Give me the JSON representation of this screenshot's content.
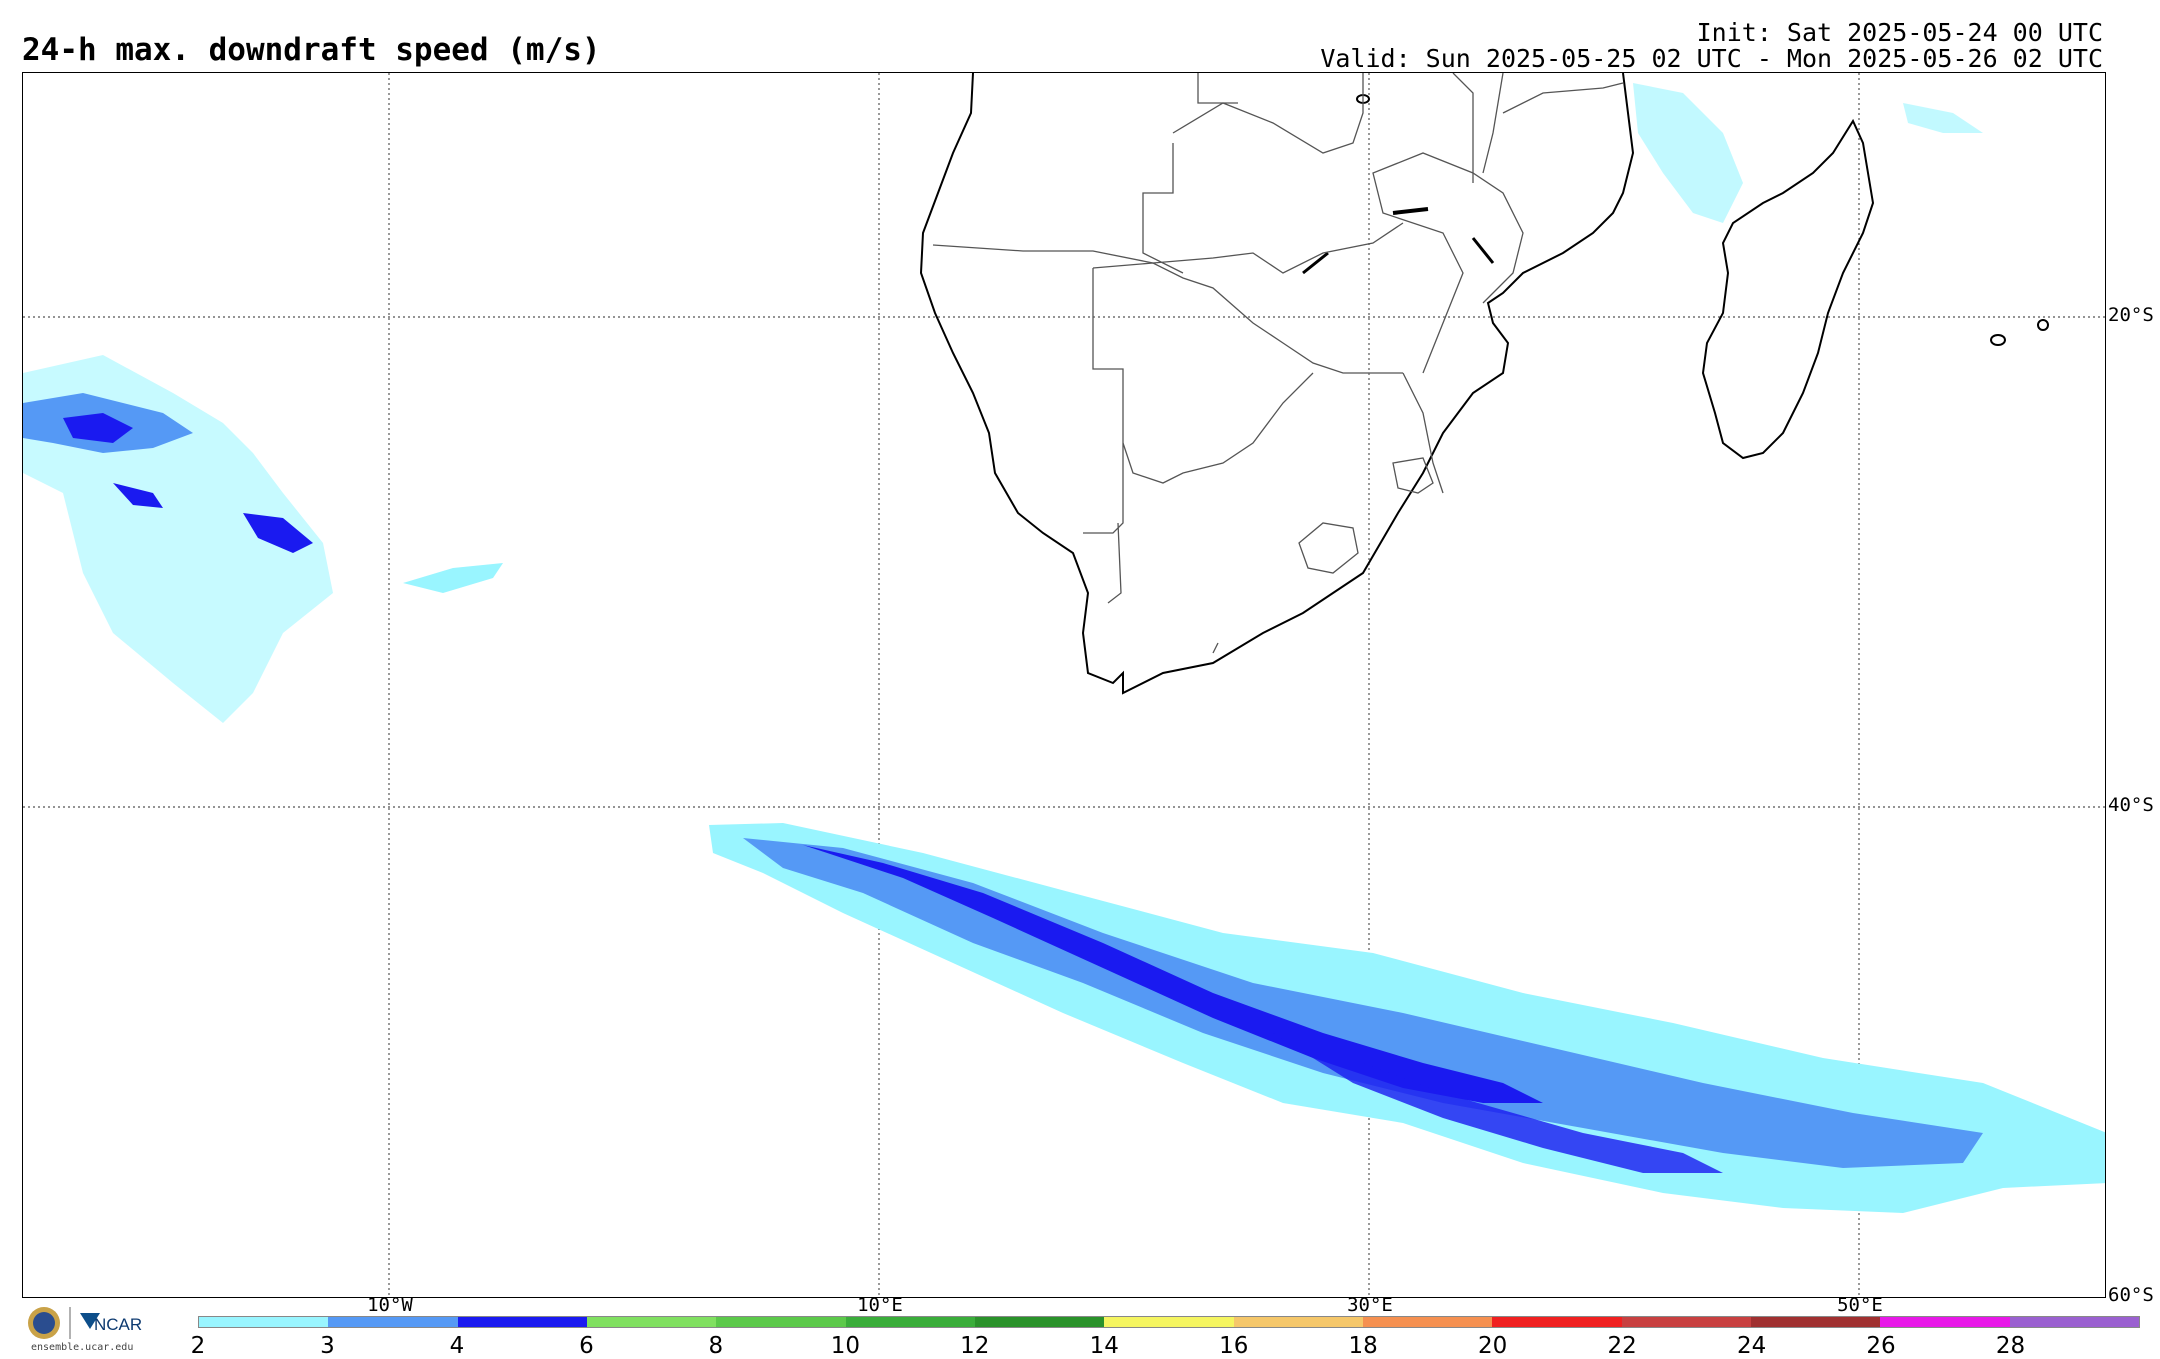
{
  "header": {
    "title": "24-h max. downdraft speed (m/s)",
    "init": "Init: Sat 2025-05-24 00 UTC",
    "valid": "Valid: Sun 2025-05-25 02 UTC - Mon 2025-05-26 02 UTC"
  },
  "map": {
    "lat_labels": [
      "20°S",
      "40°S",
      "60°S"
    ],
    "lon_labels": [
      "10°W",
      "10°E",
      "30°E",
      "50°E"
    ],
    "land_color": "#ffffff",
    "ocean_color": "#ffffff"
  },
  "colorbar": {
    "ticks": [
      "2",
      "3",
      "4",
      "6",
      "8",
      "10",
      "12",
      "14",
      "16",
      "18",
      "20",
      "22",
      "24",
      "26",
      "28"
    ],
    "colors": [
      "#99f5ff",
      "#5599f5",
      "#1a1af0",
      "#80e060",
      "#5cc94a",
      "#3aad3a",
      "#2a922a",
      "#f5f560",
      "#f5c76a",
      "#f59050",
      "#f02020",
      "#c84040",
      "#a03030",
      "#e818e8",
      "#9a60d0"
    ]
  },
  "logo": {
    "org": "NCAR",
    "url": "ensemble.ucar.edu"
  }
}
